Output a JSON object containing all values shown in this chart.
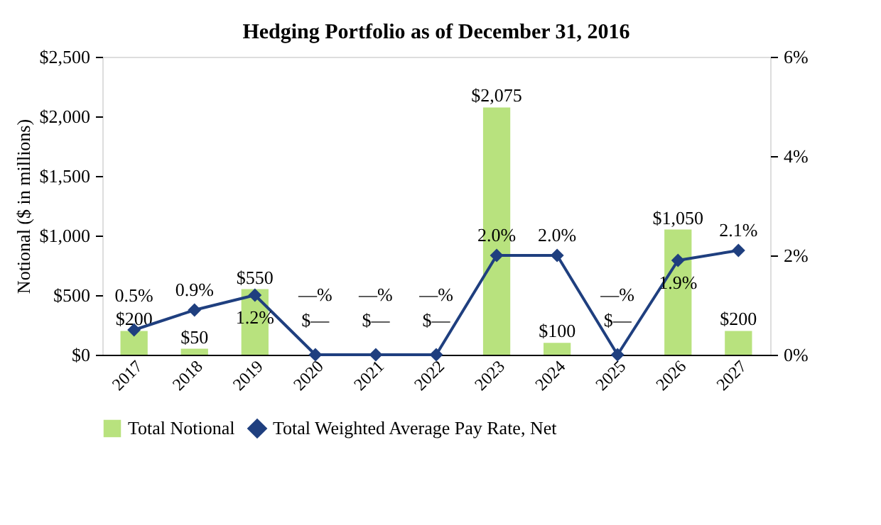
{
  "chart_data": {
    "type": "bar",
    "title": "Hedging Portfolio as of December 31, 2016",
    "ylabel": "Notional ($ in millions)",
    "categories": [
      "2017",
      "2018",
      "2019",
      "2020",
      "2021",
      "2022",
      "2023",
      "2024",
      "2025",
      "2026",
      "2027"
    ],
    "series": [
      {
        "name": "Total Notional",
        "type": "bar",
        "color": "#b8e27e",
        "values": [
          200,
          50,
          550,
          0,
          0,
          0,
          2075,
          100,
          0,
          1050,
          200
        ],
        "value_labels": [
          "$200",
          "$50",
          "$550",
          "$—",
          "$—",
          "$—",
          "$2,075",
          "$100",
          "$—",
          "$1,050",
          "$200"
        ]
      },
      {
        "name": "Total Weighted Average Pay Rate, Net",
        "type": "line",
        "axis": "y2",
        "color": "#1f3f7f",
        "marker": "diamond",
        "values": [
          0.5,
          0.9,
          1.2,
          0,
          0,
          0,
          2.0,
          2.0,
          0,
          1.9,
          2.1
        ],
        "value_labels": [
          "0.5%",
          "0.9%",
          "1.2%",
          "—%",
          "—%",
          "—%",
          "2.0%",
          "2.0%",
          "—%",
          "1.9%",
          "2.1%"
        ]
      }
    ],
    "ylim": [
      0,
      2500
    ],
    "yticks": [
      {
        "value": 0,
        "label": "$0"
      },
      {
        "value": 500,
        "label": "$500"
      },
      {
        "value": 1000,
        "label": "$1,000"
      },
      {
        "value": 1500,
        "label": "$1,500"
      },
      {
        "value": 2000,
        "label": "$2,000"
      },
      {
        "value": 2500,
        "label": "$2,500"
      }
    ],
    "y2lim": [
      0,
      6
    ],
    "y2ticks": [
      {
        "value": 0,
        "label": "0%"
      },
      {
        "value": 2,
        "label": "2%"
      },
      {
        "value": 4,
        "label": "4%"
      },
      {
        "value": 6,
        "label": "6%"
      }
    ],
    "grid": false,
    "legend": "bottom"
  }
}
